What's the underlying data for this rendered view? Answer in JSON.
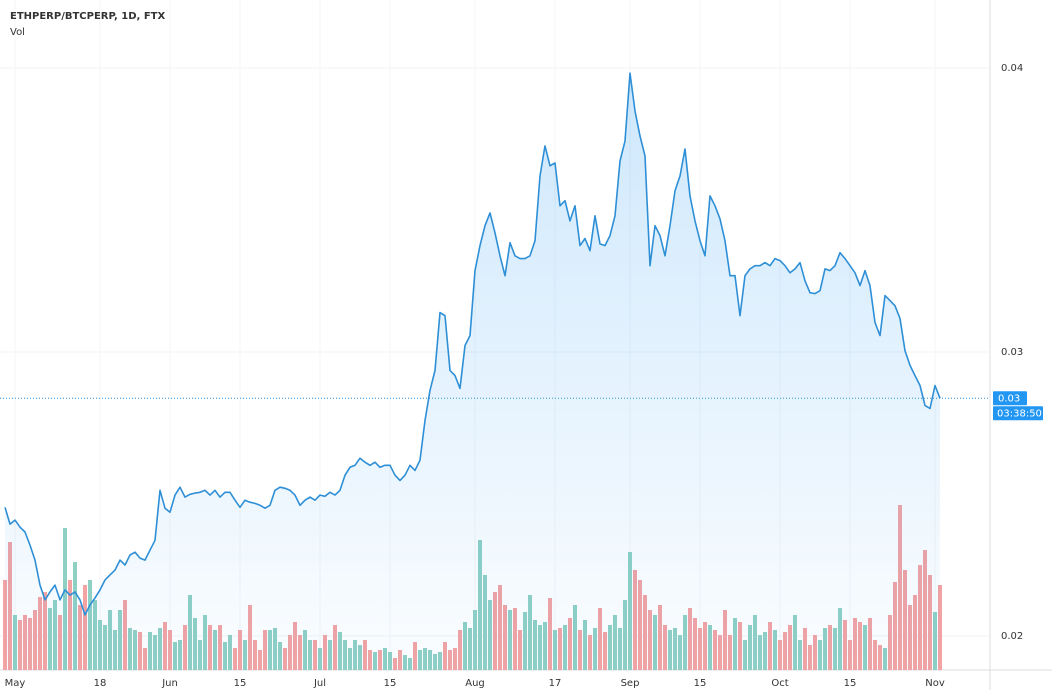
{
  "chart_data": {
    "type": "line",
    "title": "ETHPERP/BTCPERP, 1D, FTX",
    "categories": [
      null,
      null,
      "May",
      null,
      null,
      null,
      null,
      null,
      null,
      null,
      null,
      null,
      null,
      null,
      null,
      null,
      null,
      null,
      null,
      "18",
      null,
      null,
      null,
      null,
      null,
      null,
      null,
      null,
      null,
      null,
      null,
      null,
      null,
      "Jun",
      null,
      null,
      null,
      null,
      null,
      null,
      null,
      null,
      null,
      null,
      null,
      null,
      null,
      "15",
      null,
      null,
      null,
      null,
      null,
      null,
      null,
      null,
      null,
      null,
      null,
      null,
      null,
      null,
      null,
      "Jul",
      null,
      null,
      null,
      null,
      null,
      null,
      null,
      null,
      null,
      null,
      null,
      null,
      null,
      "15",
      null,
      null,
      null,
      null,
      null,
      null,
      null,
      null,
      null,
      null,
      null,
      null,
      null,
      null,
      null,
      null,
      "Aug",
      null,
      null,
      null,
      null,
      null,
      null,
      null,
      null,
      null,
      null,
      null,
      null,
      null,
      null,
      null,
      "17",
      null,
      null,
      null,
      null,
      null,
      null,
      null,
      null,
      null,
      null,
      null,
      null,
      null,
      null,
      "Sep",
      null,
      null,
      null,
      null,
      null,
      null,
      null,
      null,
      null,
      null,
      null,
      null,
      null,
      "15",
      null,
      null,
      null,
      null,
      null,
      null,
      null,
      null,
      null,
      null,
      null,
      null,
      null,
      null,
      null,
      "Oct",
      null,
      null,
      null,
      null,
      null,
      null,
      null,
      null,
      null,
      null,
      null,
      null,
      null,
      "15",
      null,
      null,
      null,
      null,
      null,
      null,
      null,
      null,
      null,
      null,
      null,
      null,
      null,
      null,
      null,
      null,
      "Nov",
      null
    ],
    "series": [
      {
        "color": "#2e8fd6",
        "values": [
          0.02453,
          0.02394,
          0.02408,
          0.02383,
          0.02366,
          0.0232,
          0.02267,
          0.02179,
          0.02127,
          0.02155,
          0.02179,
          0.02127,
          0.02162,
          0.02144,
          0.02155,
          0.02127,
          0.02074,
          0.02109,
          0.02134,
          0.02162,
          0.02197,
          0.02215,
          0.02232,
          0.02267,
          0.0225,
          0.02285,
          0.02295,
          0.02274,
          0.02267,
          0.02302,
          0.02337,
          0.02513,
          0.0245,
          0.02436,
          0.02496,
          0.02524,
          0.02489,
          0.02499,
          0.02503,
          0.02506,
          0.02513,
          0.02496,
          0.02513,
          0.02489,
          0.02506,
          0.02506,
          0.02478,
          0.02453,
          0.02478,
          0.02471,
          0.02467,
          0.0246,
          0.0245,
          0.0246,
          0.02513,
          0.02524,
          0.0252,
          0.02513,
          0.02496,
          0.0246,
          0.02478,
          0.02489,
          0.02478,
          0.02496,
          0.02492,
          0.02506,
          0.02496,
          0.02513,
          0.02566,
          0.02594,
          0.02601,
          0.02626,
          0.02612,
          0.02601,
          0.02612,
          0.02594,
          0.02601,
          0.02601,
          0.02566,
          0.02548,
          0.02566,
          0.02601,
          0.02583,
          0.02619,
          0.02759,
          0.02865,
          0.02935,
          0.03139,
          0.03128,
          0.02935,
          0.02917,
          0.02872,
          0.03023,
          0.03058,
          0.03287,
          0.03375,
          0.03445,
          0.0349,
          0.0342,
          0.03339,
          0.03269,
          0.03385,
          0.03339,
          0.03329,
          0.03329,
          0.03339,
          0.03392,
          0.0362,
          0.03726,
          0.03656,
          0.03666,
          0.03515,
          0.03533,
          0.03462,
          0.03515,
          0.03375,
          0.034,
          0.03357,
          0.0348,
          0.03381,
          0.03375,
          0.0341,
          0.0348,
          0.03673,
          0.03743,
          0.03982,
          0.03849,
          0.03761,
          0.03691,
          0.03304,
          0.03445,
          0.0341,
          0.03339,
          0.03445,
          0.03568,
          0.0362,
          0.03715,
          0.0355,
          0.03462,
          0.03392,
          0.03339,
          0.0355,
          0.03515,
          0.03469,
          0.03392,
          0.03269,
          0.03269,
          0.03128,
          0.03269,
          0.03293,
          0.03304,
          0.03304,
          0.03315,
          0.03304,
          0.03329,
          0.03322,
          0.03304,
          0.03279,
          0.03293,
          0.03315,
          0.03251,
          0.03209,
          0.03206,
          0.03216,
          0.03293,
          0.03287,
          0.03304,
          0.0335,
          0.03329,
          0.03304,
          0.03279,
          0.03234,
          0.03287,
          0.03234,
          0.03104,
          0.03058,
          0.03199,
          0.03181,
          0.03163,
          0.03118,
          0.03005,
          0.02953,
          0.02917,
          0.02882,
          0.02812,
          0.02801,
          0.02882,
          0.02837
        ]
      },
      {
        "name": "Vol",
        "type": "bar",
        "up_color": "#8fd0c5",
        "down_color": "#f3a3a3",
        "values": [
          90,
          128,
          55,
          50,
          55,
          52,
          60,
          73,
          78,
          62,
          70,
          55,
          142,
          90,
          108,
          65,
          85,
          90,
          70,
          50,
          45,
          60,
          40,
          60,
          70,
          42,
          40,
          38,
          22,
          38,
          35,
          42,
          48,
          40,
          28,
          30,
          45,
          75,
          52,
          30,
          55,
          45,
          40,
          45,
          28,
          35,
          22,
          40,
          30,
          65,
          30,
          20,
          40,
          40,
          42,
          28,
          22,
          35,
          48,
          35,
          40,
          30,
          30,
          22,
          35,
          30,
          45,
          38,
          30,
          22,
          30,
          25,
          30,
          20,
          18,
          20,
          22,
          18,
          12,
          20,
          15,
          12,
          28,
          20,
          22,
          20,
          16,
          18,
          28,
          20,
          22,
          40,
          48,
          42,
          60,
          130,
          95,
          70,
          78,
          85,
          65,
          60,
          62,
          40,
          58,
          75,
          50,
          45,
          48,
          72,
          40,
          42,
          45,
          52,
          65,
          40,
          50,
          35,
          42,
          62,
          38,
          45,
          55,
          42,
          70,
          118,
          100,
          90,
          75,
          60,
          55,
          65,
          45,
          40,
          42,
          35,
          55,
          62,
          52,
          42,
          48,
          45,
          40,
          35,
          60,
          35,
          52,
          48,
          30,
          45,
          55,
          35,
          38,
          48,
          40,
          30,
          38,
          45,
          55,
          30,
          42,
          25,
          35,
          30,
          42,
          45,
          42,
          62,
          50,
          30,
          52,
          48,
          45,
          52,
          30,
          25,
          22,
          55,
          88,
          165,
          100,
          65,
          75,
          105,
          120,
          95,
          58,
          85
        ]
      }
    ],
    "ylim": [
      0.0188,
      0.0424
    ],
    "yticks": [
      0.02,
      0.03,
      0.04
    ],
    "grid": true,
    "last_price_label": "0.03",
    "countdown": "03:38:50"
  }
}
